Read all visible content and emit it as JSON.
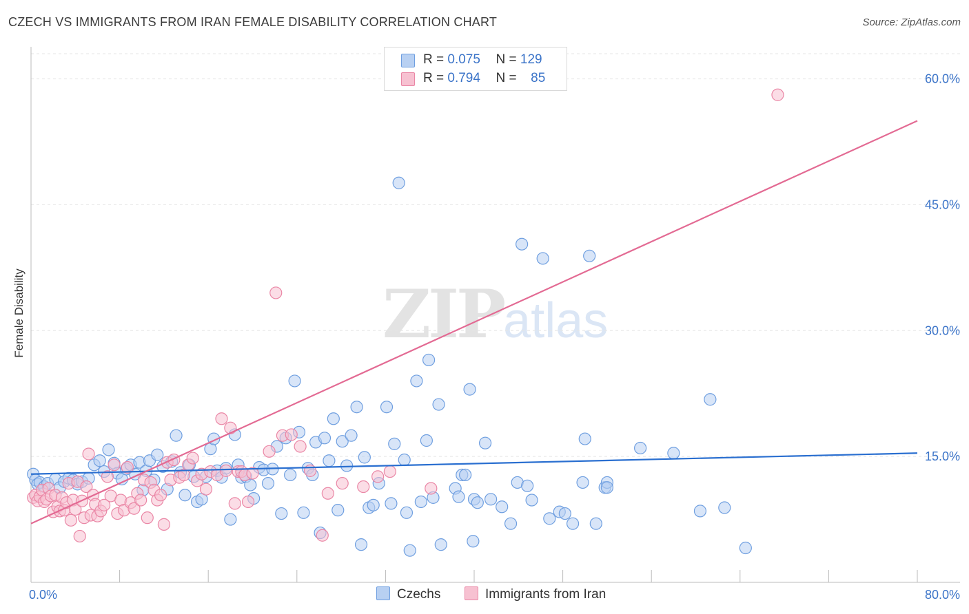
{
  "title": "CZECH VS IMMIGRANTS FROM IRAN FEMALE DISABILITY CORRELATION CHART",
  "source": "Source: ZipAtlas.com",
  "watermark": {
    "zip": "ZIP",
    "atlas": "atlas"
  },
  "legend": {
    "czechs": {
      "r_label": "R =",
      "r_value": "0.075",
      "n_label": "N =",
      "n_value": "129"
    },
    "iran": {
      "r_label": "R =",
      "r_value": "0.794",
      "n_label": "N =",
      "n_value": "85"
    }
  },
  "colors": {
    "czechs_fill": "#b8d0f2",
    "czechs_stroke": "#6f9fe0",
    "czechs_line": "#2a6fd0",
    "iran_fill": "#f7c1d1",
    "iran_stroke": "#ea87a6",
    "iran_line": "#e36a93",
    "tick_label": "#3a73c8",
    "grid": "#e5e5e5"
  },
  "chart_data": {
    "type": "scatter",
    "title": "CZECH VS IMMIGRANTS FROM IRAN FEMALE DISABILITY CORRELATION CHART",
    "xlabel": "",
    "ylabel": "Female Disability",
    "xlim": [
      0,
      80
    ],
    "ylim": [
      0,
      63
    ],
    "x_tick_labels": [
      "0.0%",
      "80.0%"
    ],
    "y_ticks": [
      15,
      30,
      45,
      60
    ],
    "y_tick_labels": [
      "15.0%",
      "30.0%",
      "45.0%",
      "60.0%"
    ],
    "grid": "horizontal dashed",
    "legend_position": "top-center",
    "series": [
      {
        "name": "Czechs",
        "r": 0.075,
        "n": 129,
        "trend": {
          "x": [
            0,
            80
          ],
          "y": [
            12.9,
            15.4
          ]
        },
        "points": [
          [
            0.2,
            12.9
          ],
          [
            0.4,
            12.2
          ],
          [
            0.6,
            11.7
          ],
          [
            0.8,
            11.9
          ],
          [
            1.2,
            11.4
          ],
          [
            1.5,
            11.8
          ],
          [
            2.2,
            12.3
          ],
          [
            2.6,
            11.3
          ],
          [
            3.0,
            12.0
          ],
          [
            3.4,
            12.4
          ],
          [
            3.8,
            12.2
          ],
          [
            4.2,
            11.7
          ],
          [
            4.6,
            12.0
          ],
          [
            5.2,
            12.4
          ],
          [
            5.7,
            14.0
          ],
          [
            6.2,
            14.5
          ],
          [
            6.6,
            13.2
          ],
          [
            7.0,
            15.8
          ],
          [
            7.5,
            14.2
          ],
          [
            7.8,
            13.0
          ],
          [
            8.2,
            12.3
          ],
          [
            8.6,
            13.5
          ],
          [
            9.0,
            14.0
          ],
          [
            9.4,
            12.9
          ],
          [
            9.8,
            14.3
          ],
          [
            10.1,
            11.0
          ],
          [
            10.4,
            13.3
          ],
          [
            10.7,
            14.5
          ],
          [
            11.1,
            12.2
          ],
          [
            11.4,
            15.2
          ],
          [
            11.9,
            13.8
          ],
          [
            12.3,
            11.1
          ],
          [
            12.7,
            14.4
          ],
          [
            13.1,
            17.5
          ],
          [
            13.5,
            13.1
          ],
          [
            13.9,
            10.4
          ],
          [
            14.3,
            14.0
          ],
          [
            14.7,
            12.6
          ],
          [
            15.0,
            9.6
          ],
          [
            15.4,
            9.9
          ],
          [
            15.8,
            12.6
          ],
          [
            16.2,
            15.9
          ],
          [
            16.5,
            17.1
          ],
          [
            16.8,
            13.3
          ],
          [
            17.2,
            12.5
          ],
          [
            17.6,
            13.6
          ],
          [
            18.0,
            7.5
          ],
          [
            18.4,
            17.6
          ],
          [
            18.7,
            14.0
          ],
          [
            19.0,
            12.5
          ],
          [
            19.4,
            12.6
          ],
          [
            19.8,
            11.6
          ],
          [
            20.1,
            10.0
          ],
          [
            20.6,
            13.7
          ],
          [
            21.0,
            13.4
          ],
          [
            21.4,
            11.8
          ],
          [
            21.8,
            13.5
          ],
          [
            22.2,
            16.2
          ],
          [
            22.6,
            8.2
          ],
          [
            23.0,
            17.2
          ],
          [
            23.4,
            12.8
          ],
          [
            23.8,
            24.0
          ],
          [
            24.2,
            17.9
          ],
          [
            24.6,
            8.3
          ],
          [
            25.0,
            13.6
          ],
          [
            25.4,
            12.8
          ],
          [
            25.7,
            16.7
          ],
          [
            26.1,
            5.9
          ],
          [
            26.5,
            17.2
          ],
          [
            26.9,
            14.5
          ],
          [
            27.3,
            19.5
          ],
          [
            27.7,
            8.6
          ],
          [
            28.1,
            16.8
          ],
          [
            28.5,
            13.9
          ],
          [
            28.9,
            17.5
          ],
          [
            29.4,
            20.9
          ],
          [
            29.8,
            4.5
          ],
          [
            30.1,
            14.9
          ],
          [
            30.5,
            8.9
          ],
          [
            30.9,
            9.2
          ],
          [
            31.4,
            11.8
          ],
          [
            32.1,
            20.9
          ],
          [
            32.5,
            9.4
          ],
          [
            32.8,
            16.5
          ],
          [
            33.2,
            47.6
          ],
          [
            33.7,
            14.6
          ],
          [
            33.9,
            8.3
          ],
          [
            34.2,
            3.8
          ],
          [
            34.8,
            24.0
          ],
          [
            35.2,
            9.6
          ],
          [
            35.7,
            16.9
          ],
          [
            35.9,
            26.5
          ],
          [
            36.3,
            10.1
          ],
          [
            36.8,
            21.2
          ],
          [
            37.0,
            4.5
          ],
          [
            38.3,
            11.2
          ],
          [
            38.6,
            10.2
          ],
          [
            38.9,
            12.8
          ],
          [
            39.2,
            12.8
          ],
          [
            39.6,
            23.0
          ],
          [
            39.9,
            4.9
          ],
          [
            40.0,
            9.9
          ],
          [
            40.3,
            9.5
          ],
          [
            41.0,
            16.6
          ],
          [
            41.5,
            9.9
          ],
          [
            42.5,
            9.0
          ],
          [
            43.3,
            7.0
          ],
          [
            43.9,
            11.9
          ],
          [
            44.3,
            40.3
          ],
          [
            44.8,
            11.5
          ],
          [
            45.2,
            9.8
          ],
          [
            46.2,
            38.6
          ],
          [
            46.8,
            7.6
          ],
          [
            47.7,
            8.4
          ],
          [
            48.2,
            8.2
          ],
          [
            48.9,
            7.0
          ],
          [
            49.8,
            11.9
          ],
          [
            50.0,
            17.1
          ],
          [
            50.4,
            38.9
          ],
          [
            51.0,
            7.0
          ],
          [
            51.8,
            11.3
          ],
          [
            52.0,
            11.9
          ],
          [
            52.0,
            11.3
          ],
          [
            55.0,
            16.0
          ],
          [
            58.0,
            15.4
          ],
          [
            60.4,
            8.5
          ],
          [
            61.3,
            21.8
          ],
          [
            62.6,
            8.9
          ],
          [
            64.5,
            4.1
          ]
        ]
      },
      {
        "name": "Immigrants from Iran",
        "r": 0.794,
        "n": 85,
        "trend": {
          "x": [
            0,
            80
          ],
          "y": [
            7.0,
            55.0
          ]
        },
        "points": [
          [
            0.2,
            10.1
          ],
          [
            0.4,
            10.4
          ],
          [
            0.6,
            9.7
          ],
          [
            0.8,
            10.2
          ],
          [
            1.0,
            11.0
          ],
          [
            1.2,
            9.6
          ],
          [
            1.4,
            9.9
          ],
          [
            1.6,
            11.2
          ],
          [
            1.8,
            10.3
          ],
          [
            2.0,
            8.4
          ],
          [
            2.2,
            10.4
          ],
          [
            2.4,
            9.0
          ],
          [
            2.6,
            8.5
          ],
          [
            2.8,
            10.1
          ],
          [
            3.0,
            8.6
          ],
          [
            3.2,
            9.5
          ],
          [
            3.4,
            11.8
          ],
          [
            3.6,
            7.4
          ],
          [
            3.8,
            9.8
          ],
          [
            4.0,
            8.7
          ],
          [
            4.2,
            12.0
          ],
          [
            4.4,
            5.5
          ],
          [
            4.6,
            9.7
          ],
          [
            4.8,
            7.7
          ],
          [
            5.0,
            11.4
          ],
          [
            5.2,
            15.3
          ],
          [
            5.4,
            8.0
          ],
          [
            5.6,
            10.4
          ],
          [
            5.8,
            9.3
          ],
          [
            6.0,
            7.9
          ],
          [
            6.3,
            8.5
          ],
          [
            6.6,
            9.2
          ],
          [
            6.9,
            12.6
          ],
          [
            7.2,
            10.3
          ],
          [
            7.5,
            14.0
          ],
          [
            7.8,
            8.2
          ],
          [
            8.1,
            9.8
          ],
          [
            8.4,
            8.6
          ],
          [
            8.7,
            13.7
          ],
          [
            9.0,
            9.5
          ],
          [
            9.3,
            8.8
          ],
          [
            9.6,
            10.6
          ],
          [
            9.9,
            9.8
          ],
          [
            10.2,
            12.2
          ],
          [
            10.5,
            7.7
          ],
          [
            10.8,
            11.9
          ],
          [
            11.1,
            11.0
          ],
          [
            11.4,
            9.8
          ],
          [
            11.7,
            10.4
          ],
          [
            12.0,
            6.9
          ],
          [
            12.3,
            14.3
          ],
          [
            12.6,
            12.2
          ],
          [
            12.9,
            14.6
          ],
          [
            13.4,
            12.5
          ],
          [
            13.8,
            12.8
          ],
          [
            14.2,
            14.0
          ],
          [
            14.6,
            14.8
          ],
          [
            15.0,
            12.1
          ],
          [
            15.4,
            12.9
          ],
          [
            15.8,
            11.1
          ],
          [
            16.2,
            13.2
          ],
          [
            16.8,
            12.8
          ],
          [
            17.2,
            19.5
          ],
          [
            17.6,
            13.3
          ],
          [
            18.0,
            18.4
          ],
          [
            18.4,
            9.4
          ],
          [
            18.7,
            13.2
          ],
          [
            19.0,
            13.2
          ],
          [
            19.3,
            12.8
          ],
          [
            19.6,
            9.6
          ],
          [
            20.0,
            13.0
          ],
          [
            21.5,
            15.6
          ],
          [
            22.1,
            34.5
          ],
          [
            22.7,
            17.5
          ],
          [
            23.5,
            17.6
          ],
          [
            24.3,
            16.2
          ],
          [
            25.2,
            13.3
          ],
          [
            26.3,
            5.6
          ],
          [
            26.8,
            10.6
          ],
          [
            28.1,
            11.8
          ],
          [
            30.0,
            11.4
          ],
          [
            31.3,
            12.6
          ],
          [
            32.4,
            13.2
          ],
          [
            36.1,
            11.2
          ],
          [
            67.4,
            58.1
          ]
        ]
      }
    ]
  }
}
